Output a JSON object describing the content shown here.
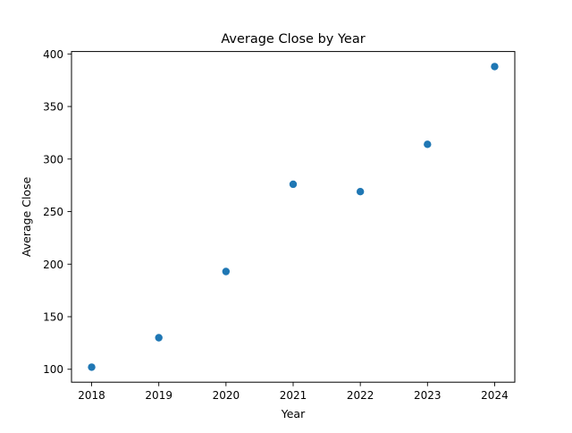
{
  "chart_data": {
    "type": "scatter",
    "title": "Average Close by Year",
    "xlabel": "Year",
    "ylabel": "Average Close",
    "x": [
      2018,
      2019,
      2020,
      2021,
      2022,
      2023,
      2024
    ],
    "y": [
      102,
      130,
      193,
      276,
      269,
      314,
      388
    ],
    "xticks": [
      2018,
      2019,
      2020,
      2021,
      2022,
      2023,
      2024
    ],
    "yticks": [
      100,
      150,
      200,
      250,
      300,
      350,
      400
    ],
    "xlim": [
      2017.7,
      2024.3
    ],
    "ylim": [
      87.7,
      402.3
    ],
    "grid": false,
    "marker_color": "#1f77b4"
  }
}
